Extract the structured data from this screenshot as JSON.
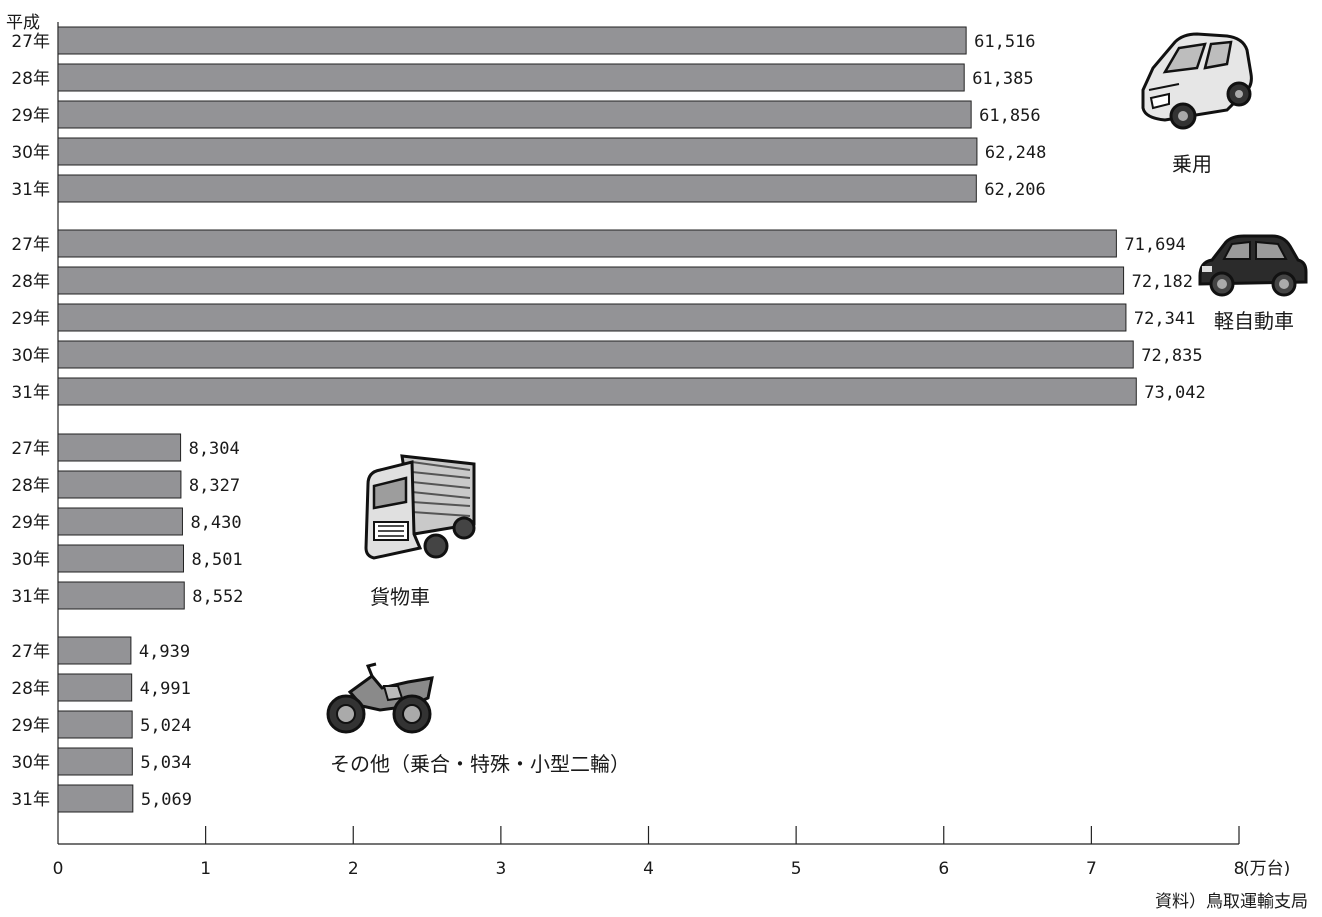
{
  "era_label": "平成",
  "source": "資料）鳥取運輸支局",
  "chart_data": {
    "type": "bar",
    "orientation": "horizontal",
    "unit": "(万台)",
    "xlim": [
      0,
      8
    ],
    "x_ticks": [
      "0",
      "1",
      "2",
      "3",
      "4",
      "5",
      "6",
      "7",
      "8"
    ],
    "grid": false,
    "year_labels": [
      "27年",
      "28年",
      "29年",
      "30年",
      "31年"
    ],
    "groups": [
      {
        "name": "乗用",
        "icon": "car-icon",
        "values": [
          61516,
          61385,
          61856,
          62248,
          62206
        ],
        "labels": [
          "61,516",
          "61,385",
          "61,856",
          "62,248",
          "62,206"
        ]
      },
      {
        "name": "軽自動車",
        "icon": "kei-car-icon",
        "values": [
          71694,
          72182,
          72341,
          72835,
          73042
        ],
        "labels": [
          "71,694",
          "72,182",
          "72,341",
          "72,835",
          "73,042"
        ]
      },
      {
        "name": "貨物車",
        "icon": "truck-icon",
        "values": [
          8304,
          8327,
          8430,
          8501,
          8552
        ],
        "labels": [
          "8,304",
          "8,327",
          "8,430",
          "8,501",
          "8,552"
        ]
      },
      {
        "name": "その他（乗合・特殊・小型二輪）",
        "icon": "motorcycle-icon",
        "values": [
          4939,
          4991,
          5024,
          5034,
          5069
        ],
        "labels": [
          "4,939",
          "4,991",
          "5,024",
          "5,034",
          "5,069"
        ]
      }
    ],
    "bar_color": "#939396"
  }
}
